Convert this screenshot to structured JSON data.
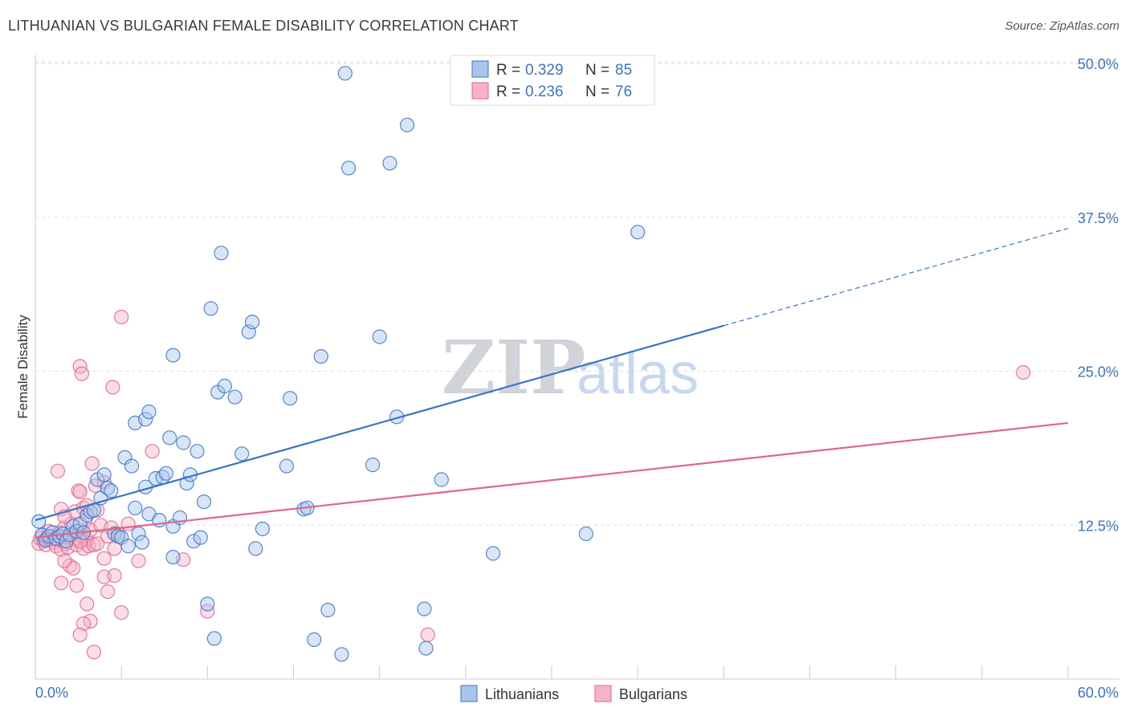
{
  "chart_data": {
    "type": "scatter",
    "title": "LITHUANIAN VS BULGARIAN FEMALE DISABILITY CORRELATION CHART",
    "source": "Source: ZipAtlas.com",
    "ylabel": "Female Disability",
    "xlabel": "",
    "xlim": [
      0,
      60
    ],
    "ylim": [
      0,
      50
    ],
    "x_tick_labels": [
      "0.0%",
      "60.0%"
    ],
    "y_ticks": [
      12.5,
      25.0,
      37.5,
      50.0
    ],
    "y_tick_labels": [
      "12.5%",
      "25.0%",
      "37.5%",
      "50.0%"
    ],
    "watermark": {
      "zip": "ZIP",
      "atlas": "atlas"
    },
    "legend": {
      "r_label": "R =",
      "n_label": "N =",
      "entries": [
        {
          "name": "Lithuanians",
          "r": "0.329",
          "n": "85"
        },
        {
          "name": "Bulgarians",
          "r": "0.236",
          "n": "76"
        }
      ]
    },
    "series": [
      {
        "name": "Lithuanians",
        "color": "#3b74c6",
        "fill": "#a9c5ec",
        "trend": {
          "x0": 0,
          "y0": 12.9,
          "x1": 40.0,
          "y1": 28.7,
          "dash_x1": 60.0,
          "dash_y1": 36.6
        },
        "points": [
          [
            0.2,
            12.8
          ],
          [
            0.4,
            11.7
          ],
          [
            0.6,
            11.3
          ],
          [
            0.8,
            11.6
          ],
          [
            1.0,
            11.9
          ],
          [
            1.2,
            11.4
          ],
          [
            1.4,
            11.6
          ],
          [
            1.6,
            11.8
          ],
          [
            1.8,
            11.2
          ],
          [
            2.0,
            11.7
          ],
          [
            2.2,
            12.4
          ],
          [
            2.4,
            12.0
          ],
          [
            2.6,
            12.6
          ],
          [
            2.8,
            11.9
          ],
          [
            3.0,
            13.3
          ],
          [
            3.2,
            13.6
          ],
          [
            3.4,
            13.7
          ],
          [
            3.6,
            16.2
          ],
          [
            3.8,
            14.7
          ],
          [
            4.0,
            16.6
          ],
          [
            4.2,
            15.5
          ],
          [
            4.4,
            15.3
          ],
          [
            4.6,
            11.8
          ],
          [
            4.8,
            11.6
          ],
          [
            5.0,
            11.5
          ],
          [
            5.2,
            18.0
          ],
          [
            5.4,
            10.8
          ],
          [
            5.6,
            17.3
          ],
          [
            5.8,
            13.9
          ],
          [
            6.0,
            11.8
          ],
          [
            6.2,
            11.1
          ],
          [
            6.4,
            15.6
          ],
          [
            6.6,
            13.4
          ],
          [
            5.8,
            20.8
          ],
          [
            6.4,
            21.1
          ],
          [
            6.6,
            21.7
          ],
          [
            7.0,
            16.3
          ],
          [
            7.2,
            12.9
          ],
          [
            7.4,
            16.4
          ],
          [
            7.6,
            16.7
          ],
          [
            7.8,
            19.6
          ],
          [
            8.0,
            12.4
          ],
          [
            8.0,
            9.9
          ],
          [
            8.0,
            26.3
          ],
          [
            8.4,
            13.1
          ],
          [
            8.6,
            19.2
          ],
          [
            8.8,
            15.9
          ],
          [
            9.0,
            16.6
          ],
          [
            9.2,
            11.2
          ],
          [
            9.4,
            18.5
          ],
          [
            9.6,
            11.5
          ],
          [
            9.8,
            14.4
          ],
          [
            10.0,
            6.1
          ],
          [
            10.2,
            30.1
          ],
          [
            10.4,
            3.3
          ],
          [
            10.6,
            23.3
          ],
          [
            10.8,
            34.6
          ],
          [
            11.0,
            23.8
          ],
          [
            11.6,
            22.9
          ],
          [
            12.0,
            18.3
          ],
          [
            12.4,
            28.2
          ],
          [
            12.6,
            29.0
          ],
          [
            12.8,
            10.6
          ],
          [
            13.2,
            12.2
          ],
          [
            14.6,
            17.3
          ],
          [
            14.8,
            22.8
          ],
          [
            15.6,
            13.8
          ],
          [
            15.8,
            13.9
          ],
          [
            16.2,
            3.2
          ],
          [
            16.6,
            26.2
          ],
          [
            17.0,
            5.6
          ],
          [
            17.8,
            2.0
          ],
          [
            18.0,
            49.2
          ],
          [
            18.2,
            41.5
          ],
          [
            19.6,
            17.4
          ],
          [
            20.0,
            27.8
          ],
          [
            20.6,
            41.9
          ],
          [
            21.0,
            21.3
          ],
          [
            21.6,
            45.0
          ],
          [
            22.6,
            5.7
          ],
          [
            22.7,
            2.5
          ],
          [
            23.6,
            16.2
          ],
          [
            26.6,
            10.2
          ],
          [
            32.0,
            11.8
          ],
          [
            35.0,
            36.3
          ]
        ]
      },
      {
        "name": "Bulgarians",
        "color": "#e0658c",
        "fill": "#f4b3c8",
        "trend": {
          "x0": 0,
          "y0": 11.5,
          "x1": 60.0,
          "y1": 20.8
        },
        "points": [
          [
            0.2,
            11.0
          ],
          [
            0.3,
            11.4
          ],
          [
            0.4,
            11.7
          ],
          [
            0.5,
            11.2
          ],
          [
            0.6,
            10.9
          ],
          [
            0.7,
            11.5
          ],
          [
            0.8,
            12.0
          ],
          [
            0.9,
            11.3
          ],
          [
            1.0,
            11.6
          ],
          [
            1.1,
            11.1
          ],
          [
            1.2,
            10.8
          ],
          [
            1.3,
            11.4
          ],
          [
            1.4,
            11.9
          ],
          [
            1.5,
            10.5
          ],
          [
            1.6,
            11.2
          ],
          [
            1.7,
            12.3
          ],
          [
            1.8,
            11.0
          ],
          [
            1.9,
            10.7
          ],
          [
            2.0,
            11.5
          ],
          [
            2.1,
            12.6
          ],
          [
            2.2,
            11.8
          ],
          [
            2.3,
            13.6
          ],
          [
            2.4,
            10.9
          ],
          [
            2.5,
            11.4
          ],
          [
            2.6,
            12.1
          ],
          [
            2.7,
            11.6
          ],
          [
            2.8,
            10.6
          ],
          [
            2.9,
            12.8
          ],
          [
            3.0,
            11.3
          ],
          [
            3.1,
            10.8
          ],
          [
            1.3,
            16.9
          ],
          [
            1.5,
            13.8
          ],
          [
            1.7,
            13.2
          ],
          [
            2.0,
            9.2
          ],
          [
            2.2,
            9.0
          ],
          [
            2.4,
            7.6
          ],
          [
            1.5,
            7.8
          ],
          [
            1.7,
            9.6
          ],
          [
            2.6,
            11.2
          ],
          [
            2.8,
            13.9
          ],
          [
            3.0,
            14.1
          ],
          [
            3.2,
            12.1
          ],
          [
            3.4,
            10.9
          ],
          [
            3.6,
            11.0
          ],
          [
            3.8,
            12.5
          ],
          [
            4.0,
            9.8
          ],
          [
            4.2,
            11.6
          ],
          [
            4.4,
            12.3
          ],
          [
            4.6,
            10.6
          ],
          [
            4.8,
            11.8
          ],
          [
            2.5,
            15.3
          ],
          [
            2.6,
            15.2
          ],
          [
            3.3,
            17.5
          ],
          [
            3.5,
            15.7
          ],
          [
            3.6,
            13.7
          ],
          [
            4.0,
            16.0
          ],
          [
            2.6,
            25.4
          ],
          [
            2.7,
            24.8
          ],
          [
            4.5,
            23.7
          ],
          [
            5.0,
            29.4
          ],
          [
            3.0,
            6.1
          ],
          [
            3.2,
            4.7
          ],
          [
            2.8,
            4.5
          ],
          [
            2.6,
            3.6
          ],
          [
            3.4,
            2.2
          ],
          [
            4.0,
            8.3
          ],
          [
            4.2,
            7.1
          ],
          [
            4.6,
            8.4
          ],
          [
            5.0,
            5.4
          ],
          [
            5.4,
            12.6
          ],
          [
            6.0,
            9.6
          ],
          [
            6.8,
            18.5
          ],
          [
            8.6,
            9.7
          ],
          [
            10.0,
            5.5
          ],
          [
            22.8,
            3.6
          ],
          [
            57.4,
            24.9
          ]
        ]
      }
    ]
  }
}
